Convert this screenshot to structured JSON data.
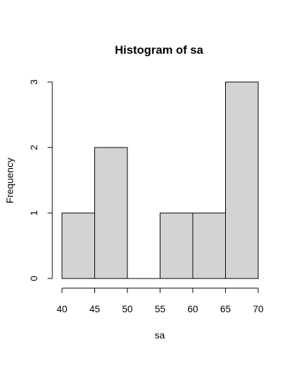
{
  "chart_data": {
    "type": "bar",
    "title": "Histogram of sa",
    "xlabel": "sa",
    "ylabel": "Frequency",
    "bins": [
      {
        "from": 40,
        "to": 45,
        "count": 1
      },
      {
        "from": 45,
        "to": 50,
        "count": 2
      },
      {
        "from": 50,
        "to": 55,
        "count": 0
      },
      {
        "from": 55,
        "to": 60,
        "count": 1
      },
      {
        "from": 60,
        "to": 65,
        "count": 1
      },
      {
        "from": 65,
        "to": 70,
        "count": 3
      }
    ],
    "xlim": [
      40,
      70
    ],
    "ylim": [
      0,
      3
    ],
    "xticks": [
      40,
      45,
      50,
      55,
      60,
      65,
      70
    ],
    "yticks": [
      0,
      1,
      2,
      3
    ],
    "grid": false,
    "bar_color": "#d3d3d3",
    "edge_color": "#000000"
  }
}
